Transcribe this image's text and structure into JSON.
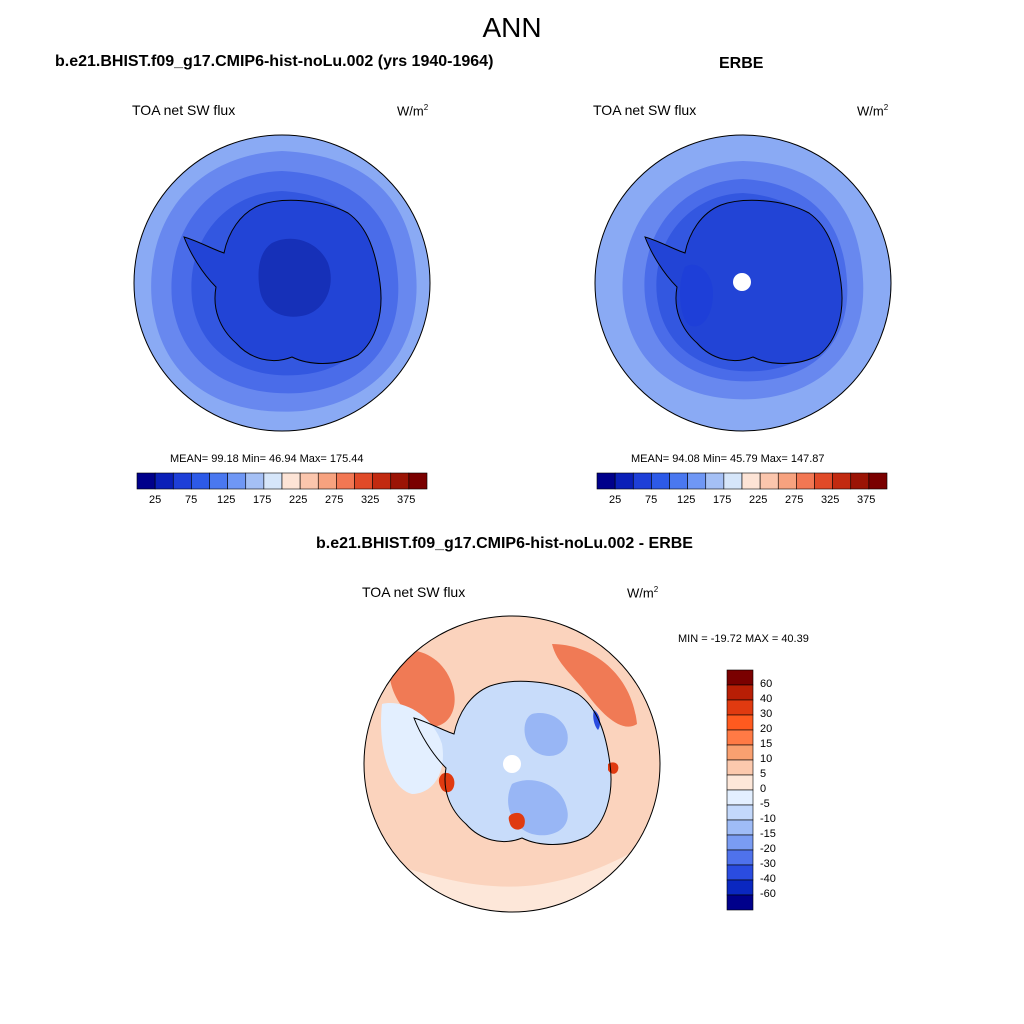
{
  "figure": {
    "title": "ANN",
    "panels": [
      {
        "case_title": "b.e21.BHIST.f09_g17.CMIP6-hist-noLu.002 (yrs 1940-1964)",
        "variable": "TOA net SW flux",
        "units_base": "W/m",
        "units_exp": "2",
        "stats_text": "MEAN=  99.18  Min=  46.94  Max= 175.44"
      },
      {
        "case_title": "ERBE",
        "variable": "TOA net SW flux",
        "units_base": "W/m",
        "units_exp": "2",
        "stats_text": "MEAN=  94.08  Min=  45.79  Max= 147.87"
      },
      {
        "case_title": "b.e21.BHIST.f09_g17.CMIP6-hist-noLu.002 - ERBE",
        "variable": "TOA net SW flux",
        "units_base": "W/m",
        "units_exp": "2",
        "stats_text": "MIN = -19.72 MAX =  40.39"
      }
    ],
    "colorbar_abs": {
      "tick_labels": [
        "25",
        "75",
        "125",
        "175",
        "225",
        "275",
        "325",
        "375"
      ],
      "colors": [
        "#00008b",
        "#0a1fb8",
        "#1e3fd8",
        "#2d5ae8",
        "#4a78f0",
        "#6f97f5",
        "#a5c0f5",
        "#d6e6fa",
        "#fde4d6",
        "#fbc6ad",
        "#f7a27f",
        "#f27753",
        "#e04a28",
        "#c22a10",
        "#9b1405",
        "#7a0000"
      ]
    },
    "colorbar_diff": {
      "labels": [
        "60",
        "40",
        "30",
        "20",
        "15",
        "10",
        "5",
        "0",
        "-5",
        "-10",
        "-15",
        "-20",
        "-30",
        "-40",
        "-60"
      ],
      "colors": [
        "#7a0000",
        "#b81e05",
        "#e03a10",
        "#ff5a1f",
        "#ff7a45",
        "#f9a070",
        "#fcc9ad",
        "#fde7d9",
        "#e3efff",
        "#c3d8fb",
        "#9fbcf7",
        "#7a9cf3",
        "#4f72ec",
        "#2a4ce0",
        "#0a27c0",
        "#00008b"
      ]
    },
    "map_colors": {
      "ring1": "#8aaaf4",
      "ring2": "#6888ef",
      "ring3": "#4a6ce9",
      "ring4": "#3357e0",
      "ring5": "#2244d6",
      "core": "#1630b8",
      "diff_pos_strong": "#f07a55",
      "diff_pos_light": "#fbd3bd",
      "diff_neg_light": "#c8dcfa",
      "diff_neg_mid": "#98b6f5",
      "diff_neg_strong": "#2a4ce0"
    }
  }
}
